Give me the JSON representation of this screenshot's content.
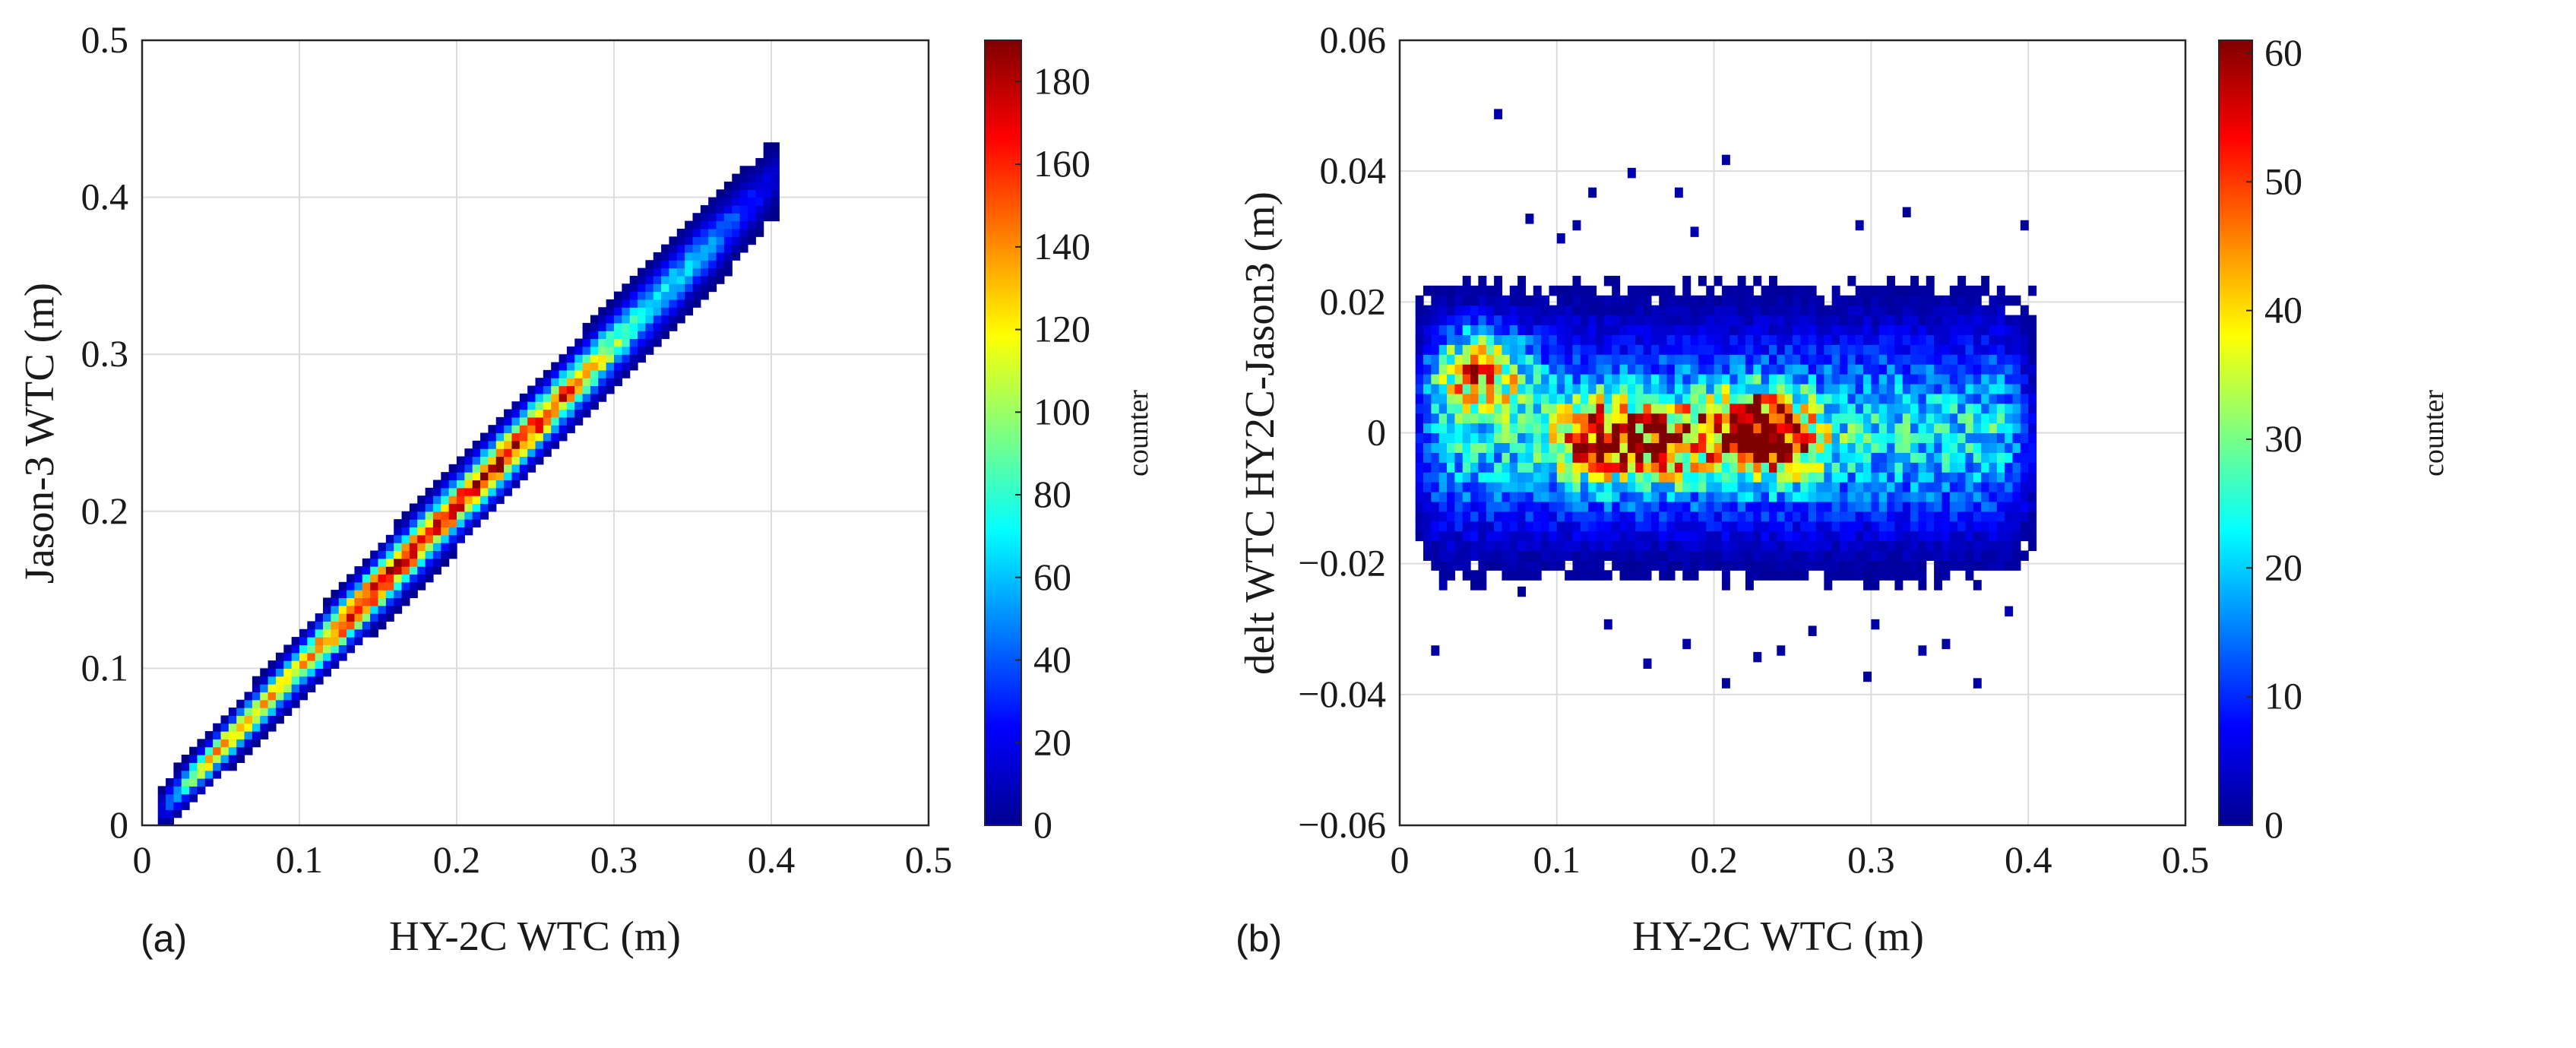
{
  "chart_data": [
    {
      "type": "heatmap",
      "panel_label": "(a)",
      "xlabel": "HY-2C WTC (m)",
      "ylabel": "Jason-3 WTC (m)",
      "xlim": [
        0,
        0.5
      ],
      "ylim": [
        0,
        0.5
      ],
      "xticks": [
        0,
        0.1,
        0.2,
        0.3,
        0.4,
        0.5
      ],
      "xtick_labels": [
        "0",
        "0.1",
        "0.2",
        "0.3",
        "0.4",
        "0.5"
      ],
      "yticks": [
        0,
        0.1,
        0.2,
        0.3,
        0.4,
        0.5
      ],
      "ytick_labels": [
        "0",
        "0.1",
        "0.2",
        "0.3",
        "0.4",
        "0.5"
      ],
      "grid": true,
      "colormap": "jet",
      "bin_size": [
        0.005,
        0.005
      ],
      "x_range": [
        0.01,
        0.4
      ],
      "band": {
        "slope": 1.03,
        "intercept": 0.0,
        "core_profile": [
          {
            "x": 0.01,
            "peak": 20,
            "width": 0.006
          },
          {
            "x": 0.04,
            "peak": 150,
            "width": 0.006
          },
          {
            "x": 0.1,
            "peak": 120,
            "width": 0.008
          },
          {
            "x": 0.13,
            "peak": 185,
            "width": 0.009
          },
          {
            "x": 0.17,
            "peak": 165,
            "width": 0.01
          },
          {
            "x": 0.23,
            "peak": 180,
            "width": 0.01
          },
          {
            "x": 0.27,
            "peak": 150,
            "width": 0.01
          },
          {
            "x": 0.31,
            "peak": 80,
            "width": 0.011
          },
          {
            "x": 0.36,
            "peak": 50,
            "width": 0.011
          },
          {
            "x": 0.4,
            "peak": 15,
            "width": 0.01
          }
        ]
      },
      "colorbar": {
        "label": "counter",
        "min": 0,
        "max": 190,
        "ticks": [
          0,
          20,
          40,
          60,
          80,
          100,
          120,
          140,
          160,
          180
        ],
        "tick_labels": [
          "0",
          "20",
          "40",
          "60",
          "80",
          "100",
          "120",
          "140",
          "160",
          "180"
        ]
      }
    },
    {
      "type": "heatmap",
      "panel_label": "(b)",
      "xlabel": "HY-2C WTC (m)",
      "ylabel": "delt WTC HY2C-Jason3 (m)",
      "xlim": [
        0,
        0.5
      ],
      "ylim": [
        -0.06,
        0.06
      ],
      "xticks": [
        0,
        0.1,
        0.2,
        0.3,
        0.4,
        0.5
      ],
      "xtick_labels": [
        "0",
        "0.1",
        "0.2",
        "0.3",
        "0.4",
        "0.5"
      ],
      "yticks": [
        -0.06,
        -0.04,
        -0.02,
        0,
        0.02,
        0.04,
        0.06
      ],
      "ytick_labels": [
        "−0.06",
        "−0.04",
        "−0.02",
        "0",
        "0.02",
        "0.04",
        "0.06"
      ],
      "grid": true,
      "colormap": "jet",
      "bin_size": [
        0.005,
        0.0015
      ],
      "x_range": [
        0.01,
        0.4
      ],
      "distribution": {
        "center": 0.0,
        "core_halfwidth": 0.006,
        "spread": 0.012,
        "hotspots": [
          {
            "x": 0.05,
            "y": 0.009,
            "value": 58
          },
          {
            "x": 0.125,
            "y": -0.002,
            "value": 61
          },
          {
            "x": 0.17,
            "y": -0.002,
            "value": 55
          },
          {
            "x": 0.22,
            "y": 0.0,
            "value": 58
          },
          {
            "x": 0.24,
            "y": -0.002,
            "value": 52
          }
        ],
        "outliers": [
          [
            0.06,
            0.048
          ],
          [
            0.145,
            0.039
          ],
          [
            0.205,
            0.041
          ],
          [
            0.12,
            0.036
          ],
          [
            0.32,
            0.033
          ],
          [
            0.08,
            0.032
          ],
          [
            0.11,
            0.031
          ],
          [
            0.29,
            0.031
          ],
          [
            0.175,
            0.036
          ],
          [
            0.1,
            0.029
          ],
          [
            0.185,
            0.03
          ],
          [
            0.395,
            0.031
          ],
          [
            0.02,
            -0.034
          ],
          [
            0.025,
            -0.024
          ],
          [
            0.075,
            -0.025
          ],
          [
            0.155,
            -0.036
          ],
          [
            0.205,
            -0.039
          ],
          [
            0.24,
            -0.034
          ],
          [
            0.295,
            -0.038
          ],
          [
            0.3,
            -0.03
          ],
          [
            0.365,
            -0.039
          ],
          [
            0.225,
            -0.035
          ],
          [
            0.345,
            -0.033
          ],
          [
            0.33,
            -0.034
          ],
          [
            0.18,
            -0.033
          ],
          [
            0.26,
            -0.031
          ],
          [
            0.13,
            -0.03
          ],
          [
            0.385,
            -0.028
          ]
        ]
      },
      "colorbar": {
        "label": "counter",
        "min": 0,
        "max": 61,
        "ticks": [
          0,
          10,
          20,
          30,
          40,
          50,
          60
        ],
        "tick_labels": [
          "0",
          "10",
          "20",
          "30",
          "40",
          "50",
          "60"
        ]
      }
    }
  ]
}
